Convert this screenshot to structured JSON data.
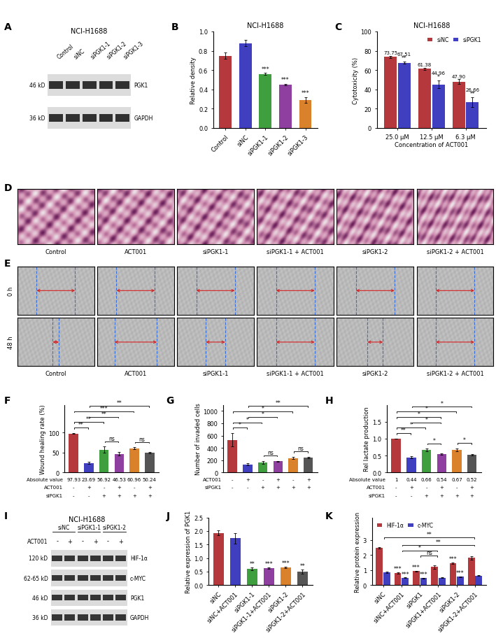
{
  "panel_letters": [
    "A",
    "B",
    "C",
    "D",
    "E",
    "F",
    "G",
    "H",
    "I",
    "J",
    "K"
  ],
  "blot_A": {
    "title": "NCI-H1688",
    "lanes": [
      "Control",
      "siNC",
      "siPGK1-1",
      "siPGK1-2",
      "siPGK1-3"
    ],
    "bands": [
      {
        "size": "46 kD",
        "protein": "PGK1"
      },
      {
        "size": "36 kD",
        "protein": "GAPDH"
      }
    ]
  },
  "images_D": {
    "labels": [
      "Control",
      "ACT001",
      "siPGK1-1",
      "siPGK1-1 + ACT001",
      "siPGK1-2",
      "siPGK1-2 + ACT001"
    ]
  },
  "images_E": {
    "rows": [
      "0 h",
      "48 h"
    ],
    "labels": [
      "Control",
      "ACT001",
      "siPGK1-1",
      "siPGK1-1 + ACT001",
      "siPGK1-2",
      "siPGK1-2 + ACT001"
    ]
  },
  "blot_I": {
    "title": "NCI-H1688",
    "groups": [
      "siNC",
      "siPGK1-1",
      "siPGK1-2"
    ],
    "treatment": "ACT001",
    "treatment_signs": [
      "-",
      "+",
      "-",
      "+",
      "-",
      "+"
    ],
    "bands": [
      {
        "size": "120 kD",
        "protein": "HIF-1α"
      },
      {
        "size": "62-65 kD",
        "protein": "c-MYC"
      },
      {
        "size": "46 kD",
        "protein": "PGK1"
      },
      {
        "size": "36 kD",
        "protein": "GAPDH"
      }
    ]
  },
  "chart_data": [
    {
      "type": "bar",
      "title": "NCI-H1688",
      "ylabel": "Relative density",
      "categories": [
        "Control",
        "siNC",
        "siPGK1-1",
        "siPGK1-2",
        "siPGK1-3"
      ],
      "values": [
        0.75,
        0.88,
        0.56,
        0.45,
        0.29
      ],
      "errors": [
        0.03,
        0.03,
        0.01,
        0.01,
        0.03
      ],
      "significance": [
        null,
        null,
        "***",
        "***",
        "***"
      ],
      "colors": [
        "#b5393c",
        "#3f3fbf",
        "#3f9f3f",
        "#8f3f9f",
        "#d9822b"
      ],
      "ylim": [
        0,
        1.0
      ],
      "yticks": [
        0.0,
        0.2,
        0.4,
        0.6,
        0.8,
        1.0
      ]
    },
    {
      "type": "bar",
      "title": "NCI-H1688",
      "ylabel": "Cytotoxicity (%)",
      "xlabel": "Concentration of ACT001",
      "categories": [
        "25.0 μM",
        "12.5 μM",
        "6.3 μM"
      ],
      "series": [
        {
          "name": "siNC",
          "color": "#b5393c",
          "values": [
            73.75,
            61.38,
            47.9
          ],
          "errors": [
            1.0,
            1.2,
            2.5
          ],
          "value_labels": [
            "73.75",
            "61.38",
            "47.90"
          ],
          "significance": [
            null,
            null,
            null
          ]
        },
        {
          "name": "siPGK1",
          "color": "#3f3fbf",
          "values": [
            67.51,
            44.96,
            26.66
          ],
          "errors": [
            1.0,
            4.0,
            5.0
          ],
          "value_labels": [
            "67.51",
            "44.96",
            "26.66"
          ],
          "significance": [
            "**",
            "*",
            "**"
          ]
        }
      ],
      "data_labels": true,
      "legend": "upper right",
      "ylim": [
        0,
        100
      ],
      "yticks": [
        0,
        20,
        40,
        60,
        80,
        100
      ]
    },
    {
      "type": "bar",
      "ylabel": "Wound healing rate (%)",
      "categories": [
        null,
        null,
        null,
        null,
        null,
        null
      ],
      "values": [
        97.93,
        23.69,
        56.92,
        46.53,
        60.96,
        50.24
      ],
      "errors": [
        1.5,
        2.5,
        8.0,
        4.0,
        2.0,
        2.0
      ],
      "colors": [
        "#b5393c",
        "#3f3fbf",
        "#3f9f3f",
        "#8f3f9f",
        "#d9822b",
        "#555555"
      ],
      "comparisons": [
        {
          "from": 0,
          "to": 1,
          "label": "**"
        },
        {
          "from": 0,
          "to": 2,
          "label": "**"
        },
        {
          "from": 0,
          "to": 4,
          "label": "***"
        },
        {
          "from": 1,
          "to": 3,
          "label": "**"
        },
        {
          "from": 2,
          "to": 3,
          "label": "ns"
        },
        {
          "from": 1,
          "to": 5,
          "label": "**"
        },
        {
          "from": 4,
          "to": 5,
          "label": "ns"
        }
      ],
      "absolute_value_label": "Absolute value",
      "conditions": [
        {
          "name": "ACT001",
          "signs": [
            "-",
            "+",
            "-",
            "+",
            "-",
            "+"
          ]
        },
        {
          "name": "siPGK1",
          "signs": [
            "-",
            "-",
            "+",
            "+",
            "+",
            "+"
          ]
        }
      ],
      "ylim": [
        0,
        170
      ],
      "yticks": [
        0,
        50,
        100
      ]
    },
    {
      "type": "bar",
      "ylabel": "Number of invaded cells",
      "categories": [
        null,
        null,
        null,
        null,
        null,
        null
      ],
      "values": [
        530,
        130,
        160,
        180,
        235,
        240
      ],
      "errors": [
        110,
        15,
        25,
        10,
        20,
        10
      ],
      "colors": [
        "#b5393c",
        "#3f3fbf",
        "#3f9f3f",
        "#8f3f9f",
        "#d9822b",
        "#555555"
      ],
      "comparisons": [
        {
          "from": 0,
          "to": 1,
          "label": "*"
        },
        {
          "from": 0,
          "to": 2,
          "label": "*"
        },
        {
          "from": 0,
          "to": 4,
          "label": "*"
        },
        {
          "from": 1,
          "to": 3,
          "label": "*"
        },
        {
          "from": 2,
          "to": 3,
          "label": "ns"
        },
        {
          "from": 1,
          "to": 5,
          "label": "**"
        },
        {
          "from": 4,
          "to": 5,
          "label": "ns"
        }
      ],
      "conditions": [
        {
          "name": "ACT001",
          "signs": [
            "-",
            "+",
            "-",
            "+",
            "-",
            "+"
          ]
        },
        {
          "name": "siPGK1",
          "signs": [
            "-",
            "-",
            "+",
            "+",
            "+",
            "+"
          ]
        }
      ],
      "ylim": [
        0,
        1100
      ],
      "yticks": [
        0,
        200,
        400,
        600,
        800,
        1000
      ]
    },
    {
      "type": "bar",
      "ylabel": "Rel lactate production",
      "categories": [
        null,
        null,
        null,
        null,
        null,
        null
      ],
      "values": [
        1,
        0.44,
        0.66,
        0.54,
        0.67,
        0.52
      ],
      "errors": [
        0,
        0.03,
        0.04,
        0.02,
        0.04,
        0.02
      ],
      "colors": [
        "#b5393c",
        "#3f3fbf",
        "#3f9f3f",
        "#8f3f9f",
        "#d9822b",
        "#555555"
      ],
      "comparisons": [
        {
          "from": 0,
          "to": 1,
          "label": "**"
        },
        {
          "from": 0,
          "to": 2,
          "label": "*"
        },
        {
          "from": 0,
          "to": 3,
          "label": "*"
        },
        {
          "from": 0,
          "to": 4,
          "label": "*"
        },
        {
          "from": 1,
          "to": 3,
          "label": "*"
        },
        {
          "from": 2,
          "to": 3,
          "label": "*"
        },
        {
          "from": 1,
          "to": 5,
          "label": "*"
        },
        {
          "from": 4,
          "to": 5,
          "label": "*"
        }
      ],
      "absolute_value_label": "Absolute value",
      "conditions": [
        {
          "name": "ACT001",
          "signs": [
            "-",
            "+",
            "-",
            "+",
            "-",
            "+"
          ]
        },
        {
          "name": "siPGK1",
          "signs": [
            "-",
            "-",
            "+",
            "+",
            "+",
            "+"
          ]
        }
      ],
      "ylim": [
        0,
        2.0
      ],
      "yticks": [
        0.0,
        0.5,
        1.0,
        1.5
      ]
    },
    {
      "type": "bar",
      "ylabel": "Relative expression of PGK1",
      "categories": [
        "siNC",
        "siNC+ACT001",
        "siPGK1-1",
        "siPGK1-1+ACT001",
        "siPGK1-2",
        "siPGK1-2+ACT001"
      ],
      "values": [
        1.93,
        1.73,
        0.6,
        0.63,
        0.65,
        0.5
      ],
      "errors": [
        0.1,
        0.2,
        0.05,
        0.03,
        0.03,
        0.08
      ],
      "significance": [
        null,
        null,
        "**",
        "***",
        "***",
        "**"
      ],
      "colors": [
        "#b5393c",
        "#3f3fbf",
        "#3f9f3f",
        "#8f3f9f",
        "#d9822b",
        "#555555"
      ],
      "ylim": [
        0,
        2.5
      ],
      "yticks": [
        0.0,
        0.5,
        1.0,
        1.5,
        2.0,
        2.5
      ]
    },
    {
      "type": "bar",
      "ylabel": "Relative protein expression",
      "categories": [
        "siNC",
        "siNC+ACT001",
        "siPGK1",
        "siPGK1+ACT001",
        "siPGK1-2",
        "siPGK1-2+ACT001"
      ],
      "series": [
        {
          "name": "HIF-1α",
          "color": "#b5393c",
          "values": [
            2.48,
            0.8,
            0.92,
            1.2,
            1.45,
            1.82
          ],
          "errors": [
            0.06,
            0.03,
            0.04,
            0.12,
            0.05,
            0.12
          ],
          "significance": [
            null,
            "***",
            "***",
            null,
            "***",
            null
          ]
        },
        {
          "name": "c-MYC",
          "color": "#3f3fbf",
          "values": [
            0.85,
            0.48,
            0.47,
            0.48,
            0.55,
            0.62
          ],
          "errors": [
            0.06,
            0.02,
            0.02,
            0.02,
            0.03,
            0.02
          ],
          "significance": [
            null,
            "***",
            "***",
            null,
            "***",
            null
          ]
        }
      ],
      "comparisons": [
        {
          "from": 0,
          "to": 5,
          "label": "**"
        },
        {
          "from": 1,
          "to": 5,
          "label": "**"
        },
        {
          "from": 1,
          "to": 3,
          "label": "*"
        },
        {
          "from": 2,
          "to": 3,
          "label": "ns"
        }
      ],
      "legend": "upper left",
      "ylim": [
        0,
        4.5
      ],
      "yticks": [
        0,
        1,
        2,
        3
      ]
    }
  ]
}
